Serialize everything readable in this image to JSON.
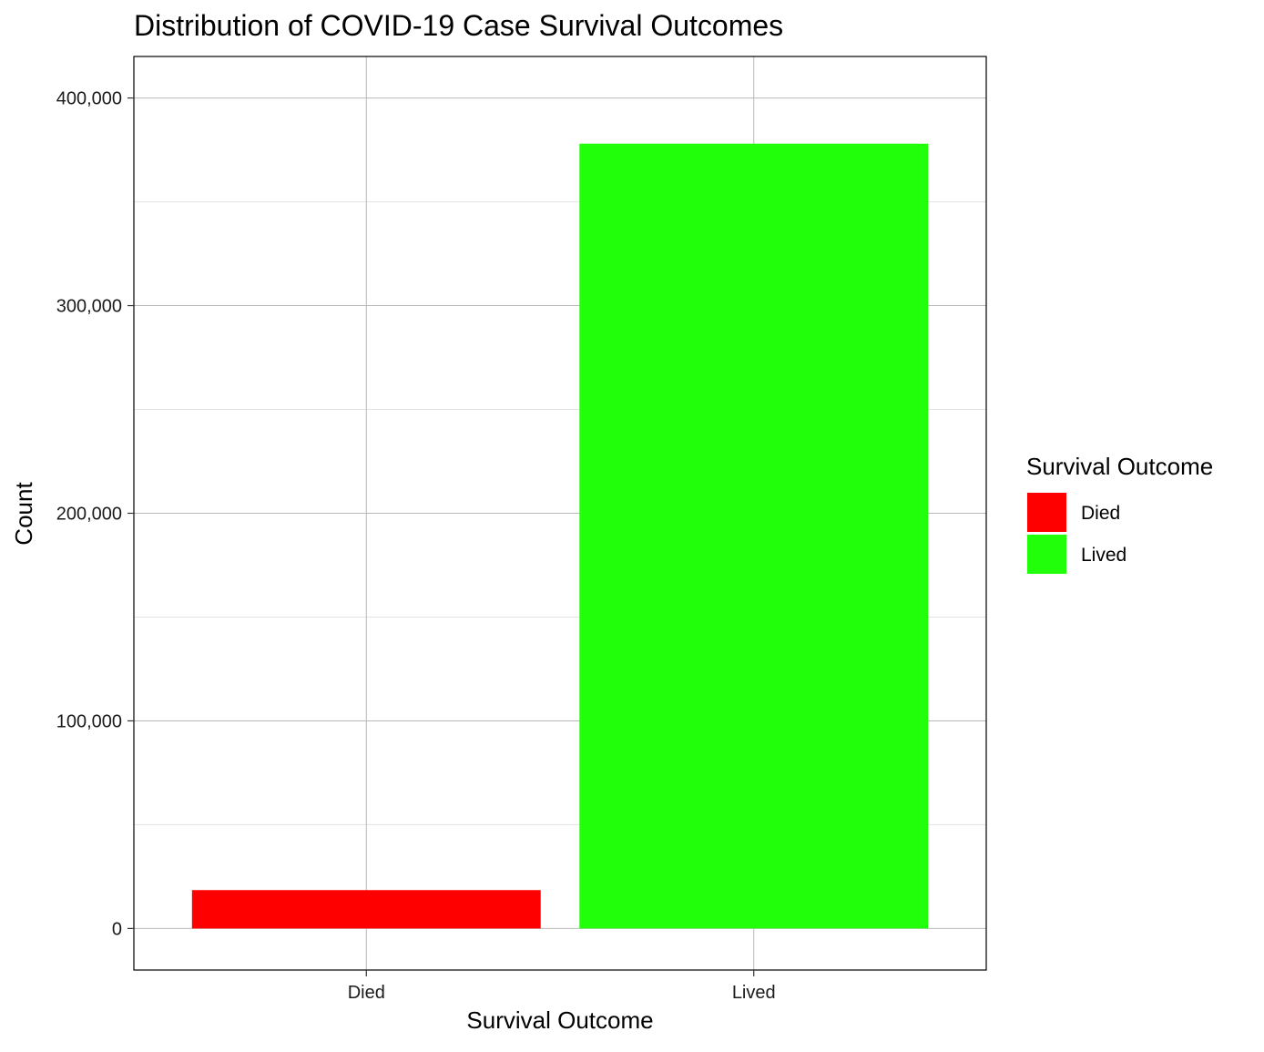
{
  "chart_data": {
    "type": "bar",
    "title": "Distribution of COVID-19 Case Survival Outcomes",
    "xlabel": "Survival Outcome",
    "ylabel": "Count",
    "categories": [
      "Died",
      "Lived"
    ],
    "values": [
      18500,
      378000
    ],
    "colors": [
      "#ff0000",
      "#22ff0a"
    ],
    "ylim": [
      -20000,
      420000
    ],
    "yticks": [
      0,
      100000,
      200000,
      300000,
      400000
    ],
    "ytick_labels": [
      "0",
      "100,000",
      "200,000",
      "300,000",
      "400,000"
    ],
    "y_minor_ticks": [
      50000,
      150000,
      250000,
      350000
    ],
    "grid": true,
    "legend": {
      "title": "Survival Outcome",
      "placement": "right",
      "entries": [
        "Died",
        "Lived"
      ]
    }
  }
}
